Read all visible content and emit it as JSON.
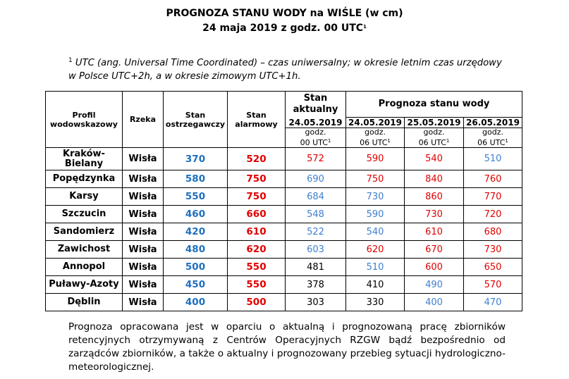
{
  "title": {
    "line1": "PROGNOZA STANU WODY na WIŚLE (w cm)",
    "line2_main": "24 maja 2019 z godz. 00 UTC",
    "line2_sup": "1"
  },
  "footnote": {
    "sup": "1",
    "text_a": " UTC (ang. ",
    "text_b": "Universal Time Coordinated",
    "text_c": ") – czas uniwersalny; w okresie letnim czas urzędowy",
    "line2": "w Polsce UTC+2h, a w okresie zimowym UTC+1h."
  },
  "table": {
    "headers": {
      "profile": "Profil wodowskazowy",
      "river": "Rzeka",
      "warning": "Stan ostrzegawczy",
      "alarm": "Stan alarmowy",
      "current": "Stan aktualny",
      "forecast": "Prognoza stanu wody",
      "current_date": "24.05.2019",
      "current_time_a": "godz.",
      "current_time_b": "00 UTC",
      "dates": [
        {
          "date": "24.05.2019",
          "time_a": "godz.",
          "time_b": "06 UTC"
        },
        {
          "date": "25.05.2019",
          "time_a": "godz.",
          "time_b": "06 UTC"
        },
        {
          "date": "26.05.2019",
          "time_a": "godz.",
          "time_b": "06 UTC"
        }
      ],
      "sup": "1"
    },
    "rows": [
      {
        "place": "Kraków-Bielany",
        "river": "Wisła",
        "warning": "370",
        "alarm": "520",
        "current": "572",
        "current_color": "#e00000",
        "forecast": [
          {
            "v": "590",
            "c": "#e00000"
          },
          {
            "v": "540",
            "c": "#e00000"
          },
          {
            "v": "510",
            "c": "#3f7fd0"
          }
        ]
      },
      {
        "place": "Popędzynka",
        "river": "Wisła",
        "warning": "580",
        "alarm": "750",
        "current": "690",
        "current_color": "#3f7fd0",
        "forecast": [
          {
            "v": "750",
            "c": "#e00000"
          },
          {
            "v": "840",
            "c": "#e00000"
          },
          {
            "v": "760",
            "c": "#e00000"
          }
        ]
      },
      {
        "place": "Karsy",
        "river": "Wisła",
        "warning": "550",
        "alarm": "750",
        "current": "684",
        "current_color": "#3f7fd0",
        "forecast": [
          {
            "v": "730",
            "c": "#3f7fd0"
          },
          {
            "v": "860",
            "c": "#e00000"
          },
          {
            "v": "770",
            "c": "#e00000"
          }
        ]
      },
      {
        "place": "Szczucin",
        "river": "Wisła",
        "warning": "460",
        "alarm": "660",
        "current": "548",
        "current_color": "#3f7fd0",
        "forecast": [
          {
            "v": "590",
            "c": "#3f7fd0"
          },
          {
            "v": "730",
            "c": "#e00000"
          },
          {
            "v": "720",
            "c": "#e00000"
          }
        ]
      },
      {
        "place": "Sandomierz",
        "river": "Wisła",
        "warning": "420",
        "alarm": "610",
        "current": "522",
        "current_color": "#3f7fd0",
        "forecast": [
          {
            "v": "540",
            "c": "#3f7fd0"
          },
          {
            "v": "610",
            "c": "#e00000"
          },
          {
            "v": "680",
            "c": "#e00000"
          }
        ]
      },
      {
        "place": "Zawichost",
        "river": "Wisła",
        "warning": "480",
        "alarm": "620",
        "current": "603",
        "current_color": "#3f7fd0",
        "forecast": [
          {
            "v": "620",
            "c": "#e00000"
          },
          {
            "v": "670",
            "c": "#e00000"
          },
          {
            "v": "730",
            "c": "#e00000"
          }
        ]
      },
      {
        "place": "Annopol",
        "river": "Wisła",
        "warning": "500",
        "alarm": "550",
        "current": "481",
        "current_color": "#000000",
        "forecast": [
          {
            "v": "510",
            "c": "#3f7fd0"
          },
          {
            "v": "600",
            "c": "#e00000"
          },
          {
            "v": "650",
            "c": "#e00000"
          }
        ]
      },
      {
        "place": "Puławy-Azoty",
        "river": "Wisła",
        "warning": "450",
        "alarm": "550",
        "current": "378",
        "current_color": "#000000",
        "forecast": [
          {
            "v": "410",
            "c": "#000000"
          },
          {
            "v": "490",
            "c": "#3f7fd0"
          },
          {
            "v": "570",
            "c": "#e00000"
          }
        ]
      },
      {
        "place": "Dęblin",
        "river": "Wisła",
        "warning": "400",
        "alarm": "500",
        "current": "303",
        "current_color": "#000000",
        "forecast": [
          {
            "v": "330",
            "c": "#000000"
          },
          {
            "v": "400",
            "c": "#3f7fd0"
          },
          {
            "v": "470",
            "c": "#3f7fd0"
          }
        ]
      }
    ]
  },
  "note": "Prognoza opracowana jest w oparciu o aktualną i prognozowaną pracę zbiorników retencyjnych otrzymywaną z Centrów Operacyjnych RZGW bądź bezpośrednio od zarządców zbiorników, a także o aktualny i prognozowany przebieg sytuacji hydrologiczno-meteorologicznej.",
  "colors": {
    "warning_blue": "#1f6fbf",
    "alarm_red": "#e00000",
    "below_warning_blue": "#3f7fd0"
  }
}
